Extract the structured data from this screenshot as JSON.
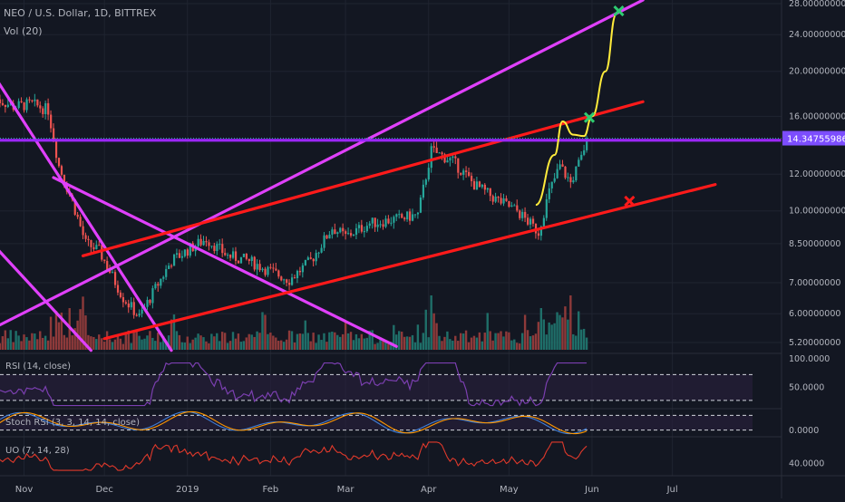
{
  "header": {
    "symbol_line": "NEO / U.S. Dollar, 1D, BITTREX",
    "vol_label": "Vol (20)"
  },
  "colors": {
    "background": "#131722",
    "grid": "#1f2430",
    "up": "#26a69a",
    "down": "#ef5350",
    "vol_up": "#1f6f69",
    "vol_down": "#8e3a3a",
    "magenta": "#e040fb",
    "red_line": "#ff1a1a",
    "purple_line": "#9c27ff",
    "yellow": "#ffeb3b",
    "green_x": "#2ecc71",
    "indicator_purple": "#7b3fb0",
    "stoch_blue": "#3f7fd9",
    "stoch_orange": "#ff9800",
    "uo_red": "#e0392b",
    "price_badge": "#7c4dff"
  },
  "chart_data": [
    {
      "type": "candlestick",
      "title": "NEO / U.S. Dollar, 1D, BITTREX",
      "y_scale": "log",
      "ylim": [
        5.0,
        28.5
      ],
      "y_ticks": [
        "28.00000000",
        "24.00000000",
        "20.00000000",
        "16.00000000",
        "12.00000000",
        "10.00000000",
        "8.50000000",
        "7.00000000",
        "6.00000000",
        "5.20000000"
      ],
      "x_ticks": [
        "Nov",
        "Dec",
        "2019",
        "Feb",
        "Mar",
        "Apr",
        "May",
        "Jun",
        "Jul"
      ],
      "current_price": "14.34755986",
      "approx_close_path": [
        [
          "Oct 21",
          17.5
        ],
        [
          "Oct 28",
          16.8
        ],
        [
          "Nov 4",
          17.0
        ],
        [
          "Nov 10",
          16.5
        ],
        [
          "Nov 14",
          12.5
        ],
        [
          "Nov 19",
          10.5
        ],
        [
          "Nov 24",
          8.5
        ],
        [
          "Nov 29",
          8.2
        ],
        [
          "Dec 3",
          7.4
        ],
        [
          "Dec 8",
          6.5
        ],
        [
          "Dec 14",
          5.9
        ],
        [
          "Dec 20",
          6.8
        ],
        [
          "Dec 26",
          7.8
        ],
        [
          "Jan 2",
          8.3
        ],
        [
          "Jan 8",
          8.7
        ],
        [
          "Jan 16",
          8.0
        ],
        [
          "Jan 24",
          7.8
        ],
        [
          "Feb 1",
          7.4
        ],
        [
          "Feb 8",
          7.1
        ],
        [
          "Feb 16",
          7.8
        ],
        [
          "Feb 24",
          9.2
        ],
        [
          "Mar 1",
          8.8
        ],
        [
          "Mar 10",
          9.4
        ],
        [
          "Mar 20",
          9.6
        ],
        [
          "Mar 28",
          9.8
        ],
        [
          "Apr 2",
          13.5
        ],
        [
          "Apr 10",
          12.8
        ],
        [
          "Apr 18",
          11.4
        ],
        [
          "Apr 26",
          10.6
        ],
        [
          "May 4",
          10.0
        ],
        [
          "May 12",
          9.0
        ],
        [
          "May 16",
          11.0
        ],
        [
          "May 20",
          12.5
        ],
        [
          "May 24",
          11.5
        ],
        [
          "May 28",
          13.0
        ],
        [
          "May 30",
          14.35
        ]
      ],
      "drawings": [
        {
          "kind": "trendline",
          "color": "magenta",
          "from": [
            "Oct 21",
            19.5
          ],
          "to": [
            "Dec 26",
            5.0
          ]
        },
        {
          "kind": "trendline",
          "color": "magenta",
          "from": [
            "Oct 21",
            8.4
          ],
          "to": [
            "Nov 26",
            5.0
          ]
        },
        {
          "kind": "trendline",
          "color": "magenta",
          "from": [
            "Nov 12",
            11.8
          ],
          "to": [
            "Mar 20",
            5.1
          ]
        },
        {
          "kind": "trendline",
          "color": "magenta",
          "from": [
            "Oct 21",
            5.6
          ],
          "to": [
            "Jun 20",
            28.5
          ]
        },
        {
          "kind": "trendline",
          "color": "red_line",
          "from": [
            "Nov 23",
            8.0
          ],
          "to": [
            "Jun 20",
            17.2
          ]
        },
        {
          "kind": "trendline",
          "color": "red_line",
          "from": [
            "Dec 1",
            5.3
          ],
          "to": [
            "Jul 17",
            11.4
          ]
        },
        {
          "kind": "horizontal",
          "color": "purple_line",
          "value": 14.2
        },
        {
          "kind": "path",
          "color": "yellow",
          "points": [
            [
              "May 11",
              10.3
            ],
            [
              "May 18",
              13.2
            ],
            [
              "May 21",
              15.6
            ],
            [
              "May 25",
              14.6
            ],
            [
              "May 29",
              14.5
            ],
            [
              "Jun 1",
              16.0
            ],
            [
              "Jun 6",
              20.0
            ],
            [
              "Jun 10",
              26.5
            ]
          ]
        },
        {
          "kind": "marker_x",
          "color": "green_x",
          "at": [
            "Jun 11",
            27.0
          ]
        },
        {
          "kind": "marker_x",
          "color": "green_x",
          "at": [
            "May 31",
            15.9
          ]
        },
        {
          "kind": "marker_x",
          "color": "red_line",
          "at": [
            "Jun 15",
            10.5
          ]
        }
      ]
    },
    {
      "type": "line",
      "title": "RSI (14, close)",
      "ylim": [
        20,
        100
      ],
      "y_ticks": [
        "100.0000",
        "50.0000"
      ],
      "bands": [
        70,
        30
      ]
    },
    {
      "type": "line",
      "title": "Stoch RSI (3, 3, 14, 14, close)",
      "ylim": [
        0,
        100
      ],
      "y_ticks": [
        "0.0000"
      ],
      "bands": [
        80,
        20
      ]
    },
    {
      "type": "line",
      "title": "UO (7, 14, 28)",
      "ylim": [
        25,
        75
      ],
      "y_ticks": [
        "40.0000"
      ]
    }
  ]
}
